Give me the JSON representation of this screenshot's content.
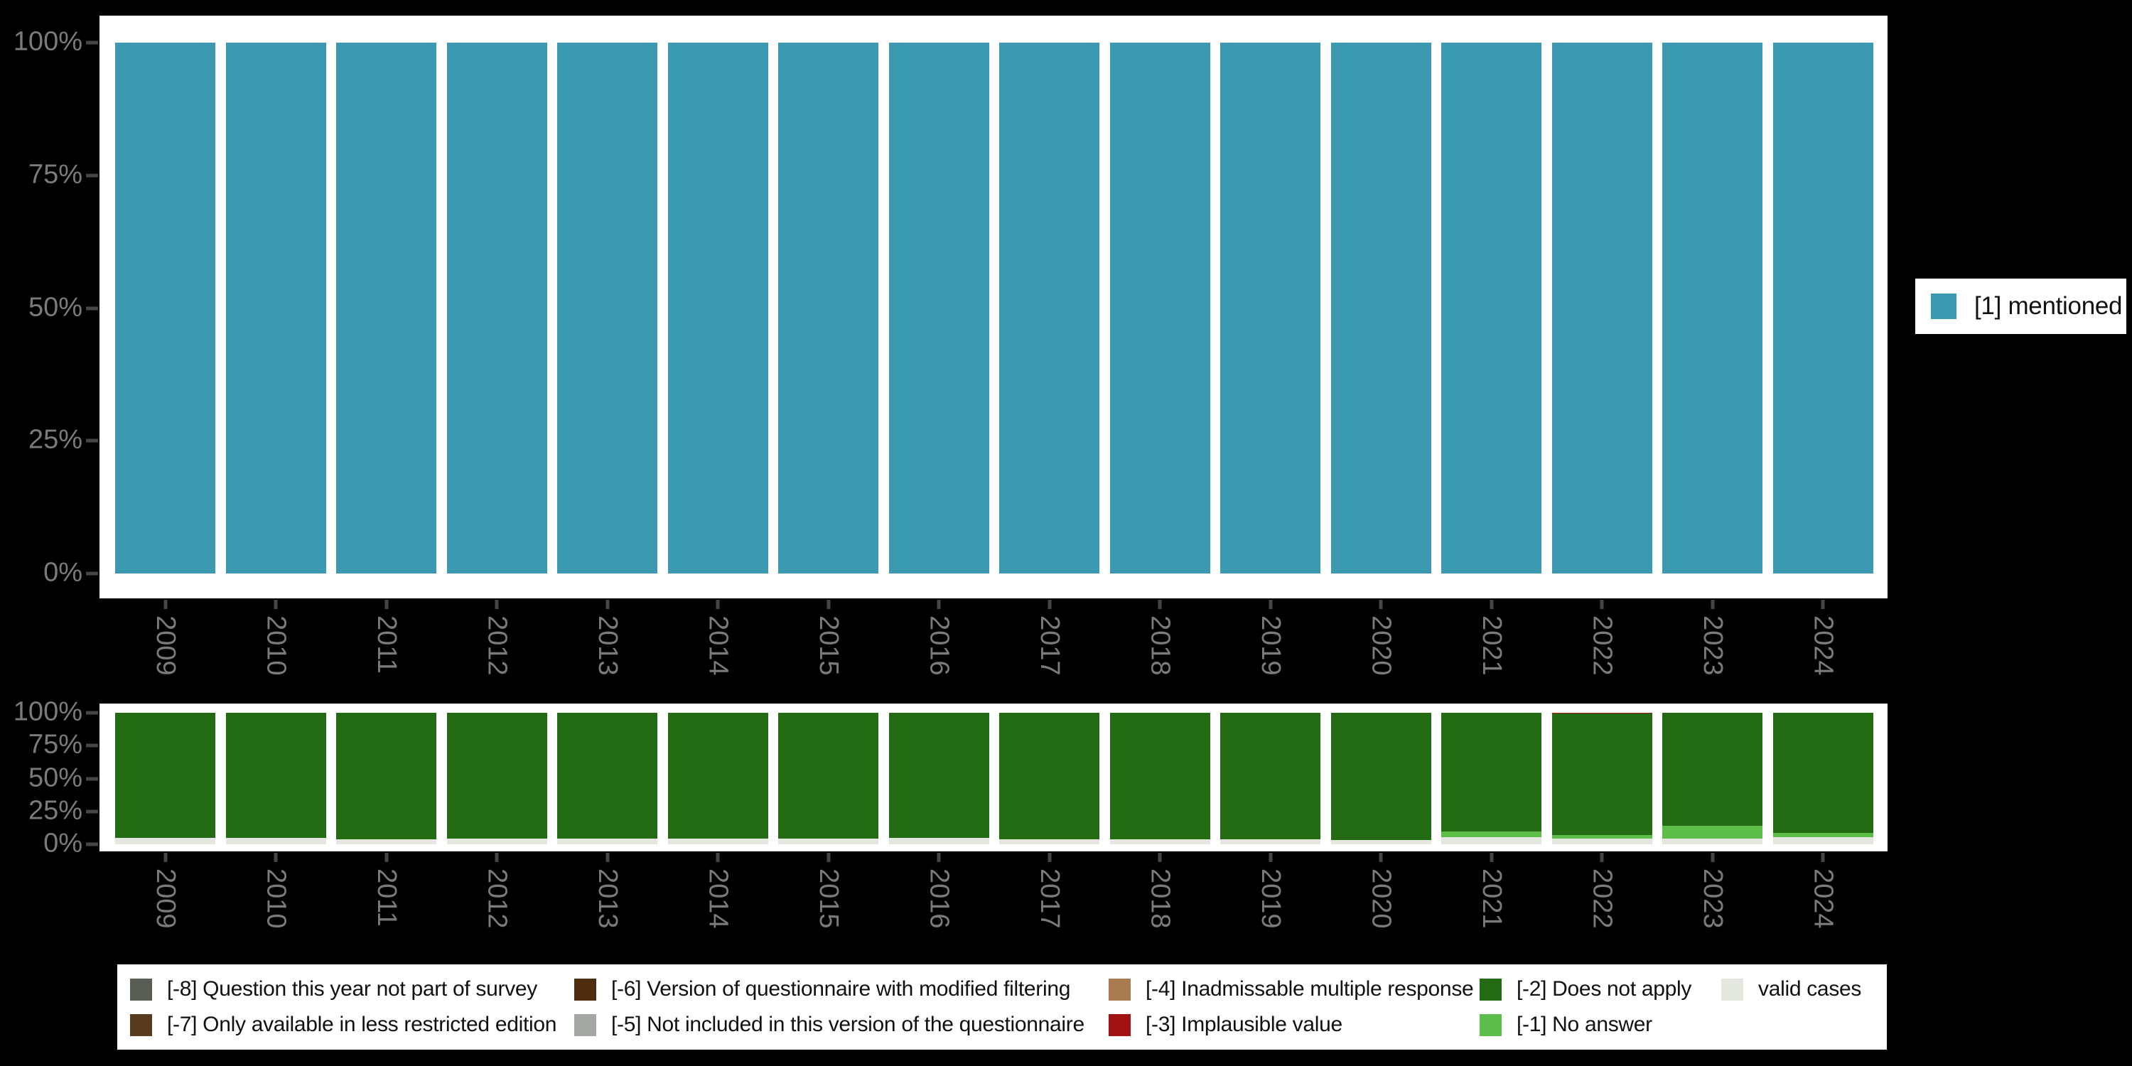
{
  "background_color": "#000000",
  "panel_color": "#ffffff",
  "axis": {
    "label_color": "#7b7b7b",
    "tick_color": "#464646",
    "ytick_labels": [
      "100%",
      "75%",
      "50%",
      "25%",
      "0%"
    ]
  },
  "years": [
    "2009",
    "2010",
    "2011",
    "2012",
    "2013",
    "2014",
    "2015",
    "2016",
    "2017",
    "2018",
    "2019",
    "2020",
    "2021",
    "2022",
    "2023",
    "2024"
  ],
  "legend_right": {
    "items": [
      {
        "label": "[1] mentioned",
        "color": "#3B99B1"
      }
    ]
  },
  "legend_bottom": {
    "items": [
      {
        "code": "-8",
        "label": "[-8] Question this year not part of survey",
        "color": "#585E55"
      },
      {
        "code": "-7",
        "label": "[-7] Only available in less restricted edition",
        "color": "#583A1D"
      },
      {
        "code": "-6",
        "label": "[-6] Version of questionnaire with modified filtering",
        "color": "#4E2D0E"
      },
      {
        "code": "-5",
        "label": "[-5] Not included in this version of the questionnaire",
        "color": "#A4A8A2"
      },
      {
        "code": "-4",
        "label": "[-4] Inadmissable multiple response",
        "color": "#A87C50"
      },
      {
        "code": "-3",
        "label": "[-3] Implausible value",
        "color": "#A11313"
      },
      {
        "code": "-2",
        "label": "[-2] Does not apply",
        "color": "#226B12"
      },
      {
        "code": "-1",
        "label": "[-1] No answer",
        "color": "#5CBE49"
      },
      {
        "code": "valid",
        "label": "valid cases",
        "color": "#E3E7E0"
      }
    ]
  },
  "chart_data": [
    {
      "type": "bar",
      "name": "frequencies-by-year",
      "title": "",
      "xlabel": "",
      "ylabel": "",
      "ylim": [
        0,
        100
      ],
      "ytick_percent": [
        0,
        25,
        50,
        75,
        100
      ],
      "grid": false,
      "legend_position": "right",
      "categories": [
        "2009",
        "2010",
        "2011",
        "2012",
        "2013",
        "2014",
        "2015",
        "2016",
        "2017",
        "2018",
        "2019",
        "2020",
        "2021",
        "2022",
        "2023",
        "2024"
      ],
      "series": [
        {
          "name": "[1] mentioned",
          "color": "#3B99B1",
          "values": [
            100,
            100,
            100,
            100,
            100,
            100,
            100,
            100,
            100,
            100,
            100,
            100,
            100,
            100,
            100,
            100
          ]
        }
      ]
    },
    {
      "type": "bar",
      "subtype": "stacked",
      "stack_order": "bottom-to-top",
      "name": "missing-values-by-year",
      "title": "",
      "xlabel": "",
      "ylabel": "",
      "ylim": [
        0,
        100
      ],
      "ytick_percent": [
        0,
        25,
        50,
        75,
        100
      ],
      "grid": false,
      "legend_position": "bottom",
      "categories": [
        "2009",
        "2010",
        "2011",
        "2012",
        "2013",
        "2014",
        "2015",
        "2016",
        "2017",
        "2018",
        "2019",
        "2020",
        "2021",
        "2022",
        "2023",
        "2024"
      ],
      "series": [
        {
          "name": "valid cases",
          "color": "#E3E7E0",
          "values": [
            5,
            5,
            4,
            4.5,
            4.5,
            4.5,
            4.5,
            5,
            4,
            4,
            4,
            3.5,
            5.5,
            4.5,
            4.5,
            5.5
          ]
        },
        {
          "name": "[-1] No answer",
          "color": "#5CBE49",
          "values": [
            0,
            0,
            0,
            0,
            0,
            0,
            0,
            0,
            0,
            0,
            0,
            0,
            4,
            2.5,
            9.5,
            3
          ]
        },
        {
          "name": "[-2] Does not apply",
          "color": "#226B12",
          "values": [
            95,
            95,
            96,
            95.5,
            95.5,
            95.5,
            95.5,
            95,
            96,
            96,
            96,
            96.5,
            90.5,
            92.2,
            86,
            91.5
          ]
        },
        {
          "name": "[-3] Implausible value",
          "color": "#A11313",
          "values": [
            0,
            0,
            0,
            0,
            0,
            0,
            0,
            0,
            0,
            0,
            0,
            0,
            0,
            0.8,
            0,
            0
          ]
        }
      ]
    }
  ]
}
